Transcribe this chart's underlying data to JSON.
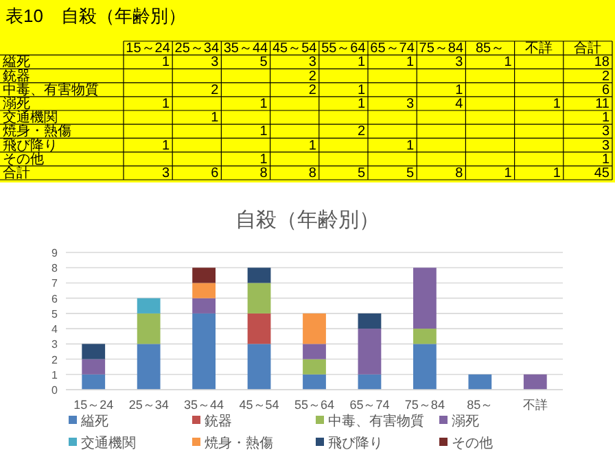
{
  "chart_data": [
    {
      "type": "heatmap",
      "title": "表10　自殺（年齢別）",
      "color": "#ffff00",
      "data_labels": true,
      "categories": [
        "15～24",
        "25～34",
        "35～44",
        "45～54",
        "55～64",
        "65～74",
        "75～84",
        "85～",
        "不詳",
        "合計"
      ],
      "y_categories": [
        "縊死",
        "銃器",
        "中毒、有害物質",
        "溺死",
        "交通機関",
        "焼身・熱傷",
        "飛び降り",
        "その他",
        "合計"
      ],
      "cells": [
        [
          1,
          3,
          5,
          3,
          1,
          1,
          3,
          1,
          null,
          18
        ],
        [
          null,
          null,
          null,
          2,
          null,
          null,
          null,
          null,
          null,
          2
        ],
        [
          null,
          2,
          null,
          2,
          1,
          null,
          1,
          null,
          null,
          6
        ],
        [
          1,
          null,
          1,
          null,
          1,
          3,
          4,
          null,
          1,
          11
        ],
        [
          null,
          1,
          null,
          null,
          null,
          null,
          null,
          null,
          null,
          1
        ],
        [
          null,
          null,
          1,
          null,
          2,
          null,
          null,
          null,
          null,
          3
        ],
        [
          1,
          null,
          null,
          1,
          null,
          1,
          null,
          null,
          null,
          3
        ],
        [
          null,
          null,
          1,
          null,
          null,
          null,
          null,
          null,
          null,
          1
        ],
        [
          3,
          6,
          8,
          8,
          5,
          5,
          8,
          1,
          1,
          45
        ]
      ]
    },
    {
      "type": "bar",
      "title": "自殺（年齢別）",
      "categories": [
        "15～24",
        "25～34",
        "35～44",
        "45～54",
        "55～64",
        "65～74",
        "75～84",
        "85～",
        "不詳"
      ],
      "stacked": true,
      "series": [
        {
          "name": "縊死",
          "color": "#4f81bd",
          "values": [
            1,
            3,
            5,
            3,
            1,
            1,
            3,
            1,
            null
          ]
        },
        {
          "name": "銃器",
          "color": "#c0504d",
          "values": [
            null,
            null,
            null,
            2,
            null,
            null,
            null,
            null,
            null
          ]
        },
        {
          "name": "中毒、有害物質",
          "color": "#9bbb59",
          "values": [
            null,
            2,
            null,
            2,
            1,
            null,
            1,
            null,
            null
          ]
        },
        {
          "name": "溺死",
          "color": "#8064a2",
          "values": [
            1,
            null,
            1,
            null,
            1,
            3,
            4,
            null,
            1
          ]
        },
        {
          "name": "交通機関",
          "color": "#4bacc6",
          "values": [
            null,
            1,
            null,
            null,
            null,
            null,
            null,
            null,
            null
          ]
        },
        {
          "name": "焼身・熱傷",
          "color": "#f79646",
          "values": [
            null,
            null,
            1,
            null,
            2,
            null,
            null,
            null,
            null
          ]
        },
        {
          "name": "飛び降り",
          "color": "#2c4d75",
          "values": [
            1,
            null,
            null,
            1,
            null,
            1,
            null,
            null,
            null
          ]
        },
        {
          "name": "その他",
          "color": "#772c2a",
          "values": [
            null,
            null,
            1,
            null,
            null,
            null,
            null,
            null,
            null
          ]
        }
      ],
      "ylim": [
        0,
        9
      ],
      "yticks": [
        0,
        1,
        2,
        3,
        4,
        5,
        6,
        7,
        8,
        9
      ],
      "grid": "y",
      "legend": "bottom"
    }
  ]
}
